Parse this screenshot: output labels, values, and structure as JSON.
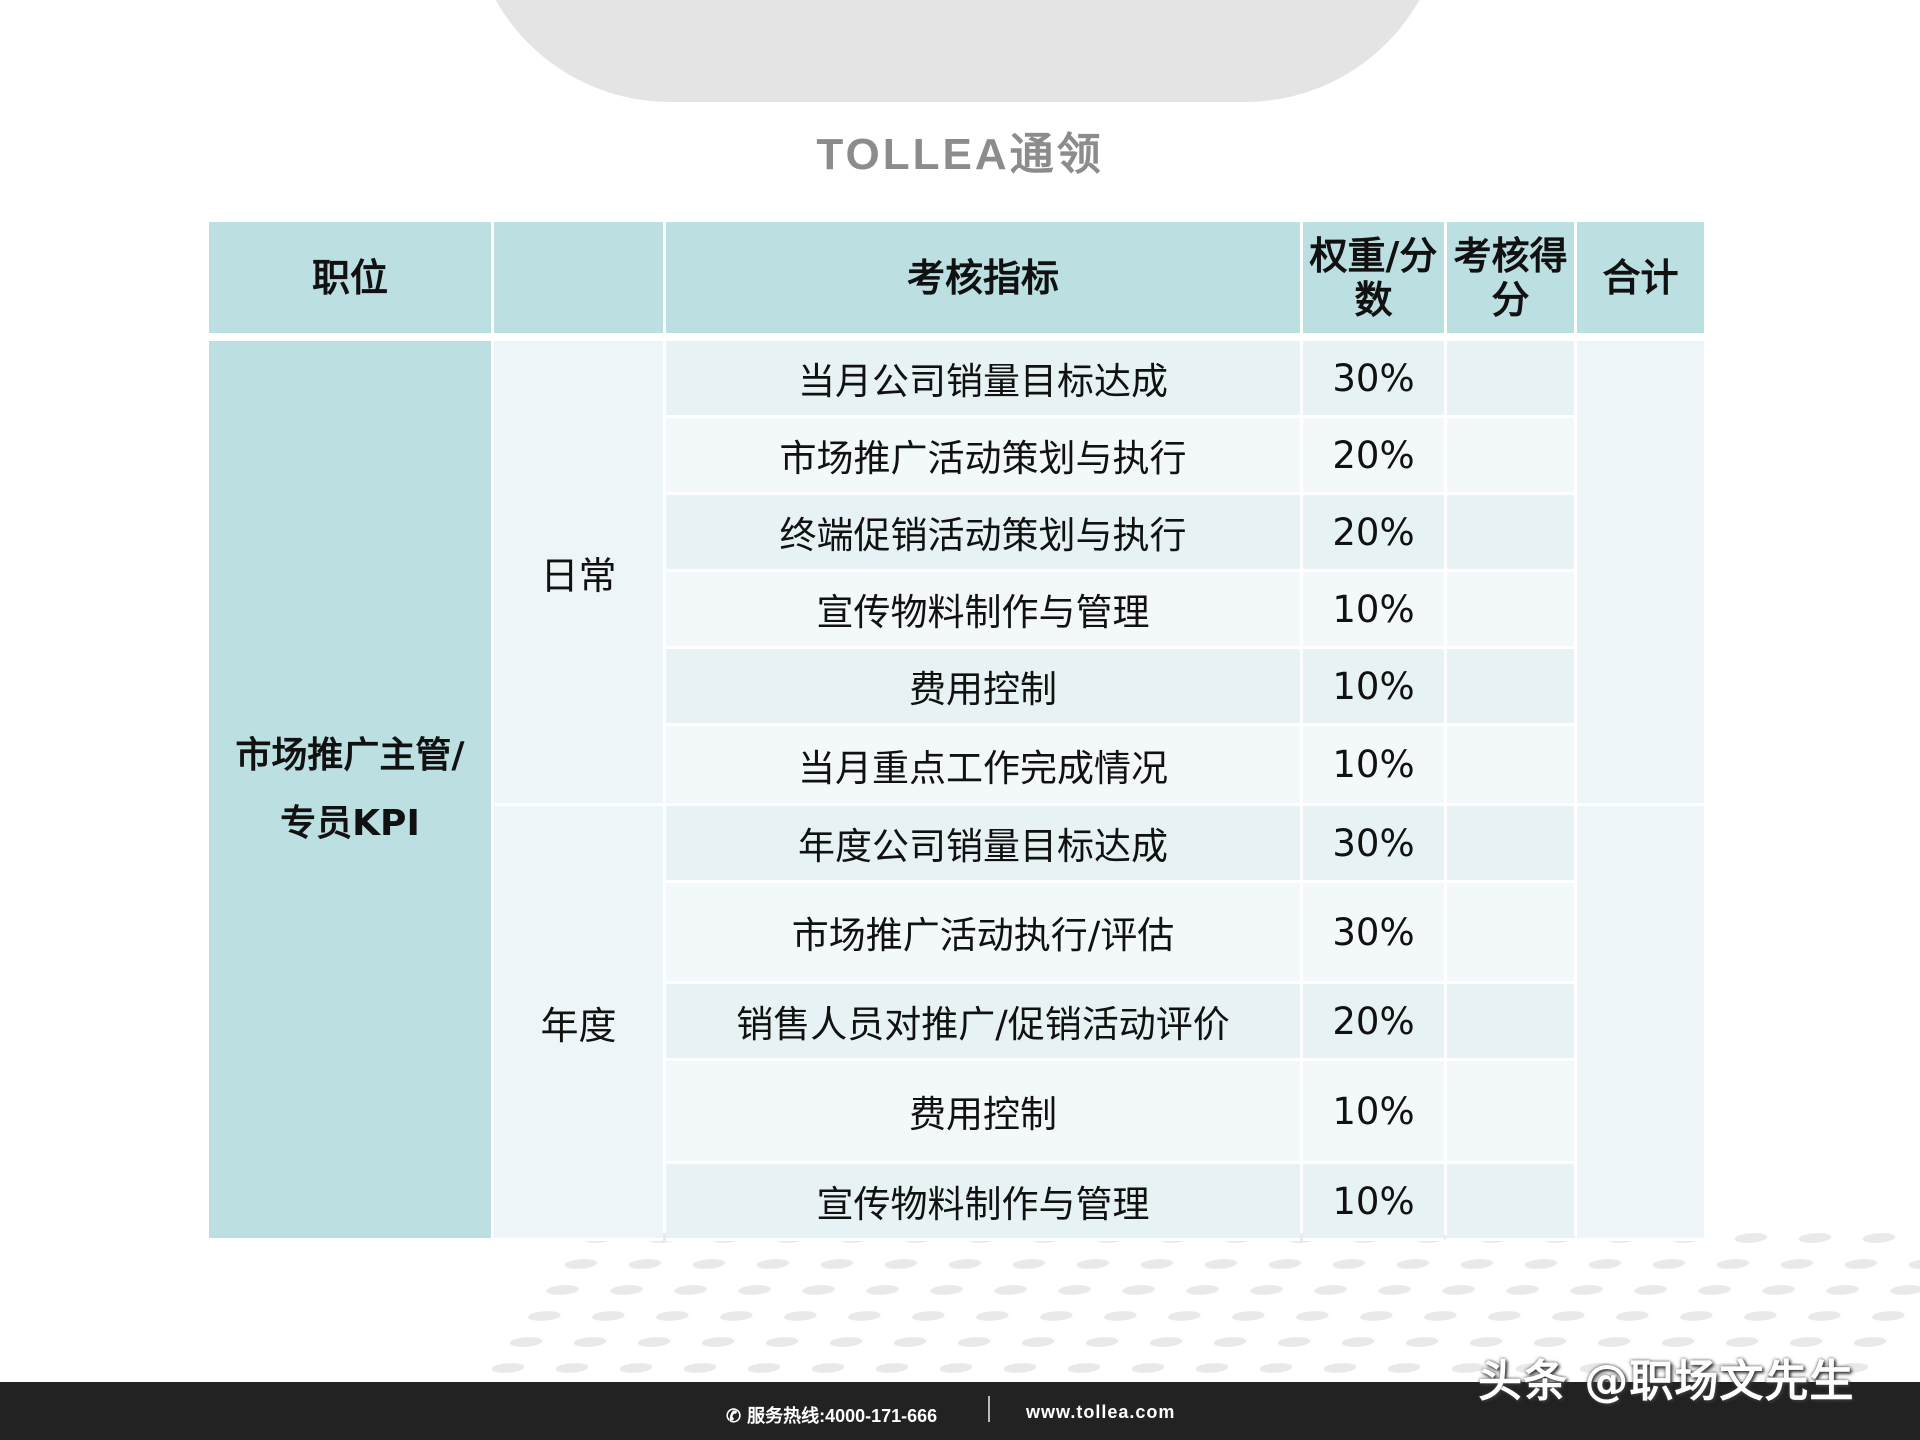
{
  "brand": {
    "logo_text": "TOLLEA通领"
  },
  "table": {
    "headers": {
      "position": "职位",
      "category": "",
      "indicator": "考核指标",
      "weight": "权重/分数",
      "score": "考核得分",
      "total": "合计"
    },
    "position": "市场推广主管/专员KPI",
    "groups": [
      {
        "name": "日常",
        "rows": [
          {
            "indicator": "当月公司销量目标达成",
            "weight": "30%"
          },
          {
            "indicator": "市场推广活动策划与执行",
            "weight": "20%"
          },
          {
            "indicator": "终端促销活动策划与执行",
            "weight": "20%"
          },
          {
            "indicator": "宣传物料制作与管理",
            "weight": "10%"
          },
          {
            "indicator": "费用控制",
            "weight": "10%"
          },
          {
            "indicator": "当月重点工作完成情况",
            "weight": "10%"
          }
        ]
      },
      {
        "name": "年度",
        "rows": [
          {
            "indicator": "年度公司销量目标达成",
            "weight": "30%"
          },
          {
            "indicator": "市场推广活动执行/评估",
            "weight": "30%"
          },
          {
            "indicator": "销售人员对推广/促销活动评价",
            "weight": "20%"
          },
          {
            "indicator": "费用控制",
            "weight": "10%"
          },
          {
            "indicator": "宣传物料制作与管理",
            "weight": "10%"
          }
        ]
      }
    ]
  },
  "footer": {
    "hotline": "服务热线:4000-171-666",
    "website": "www.tollea.com"
  },
  "watermark": "头条 @职场文先生"
}
